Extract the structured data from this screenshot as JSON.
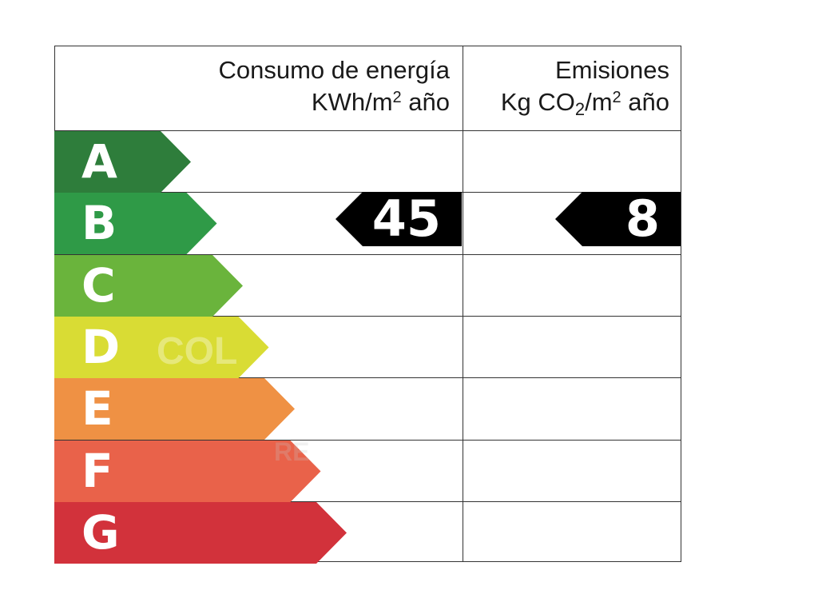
{
  "energy_header": {
    "line1": "Consumo de energía",
    "unit_prefix": "KWh/m",
    "unit_exp": "2",
    "unit_suffix": " año"
  },
  "emissions_header": {
    "line1": "Emisiones",
    "unit_a": "Kg CO",
    "unit_sub": "2",
    "unit_b": "/m",
    "unit_exp": "2",
    "unit_suffix": " año"
  },
  "ratings": [
    {
      "letter": "A",
      "color": "#2e7d3b"
    },
    {
      "letter": "B",
      "color": "#2f9a47"
    },
    {
      "letter": "C",
      "color": "#6ab43c"
    },
    {
      "letter": "D",
      "color": "#d9dc34"
    },
    {
      "letter": "E",
      "color": "#ef9144"
    },
    {
      "letter": "F",
      "color": "#e9624a"
    },
    {
      "letter": "G",
      "color": "#d2323b"
    }
  ],
  "energy_value": "45",
  "emissions_value": "8",
  "energy_value_rating": "B",
  "emissions_value_rating": "B",
  "pointer_color": "#000000"
}
